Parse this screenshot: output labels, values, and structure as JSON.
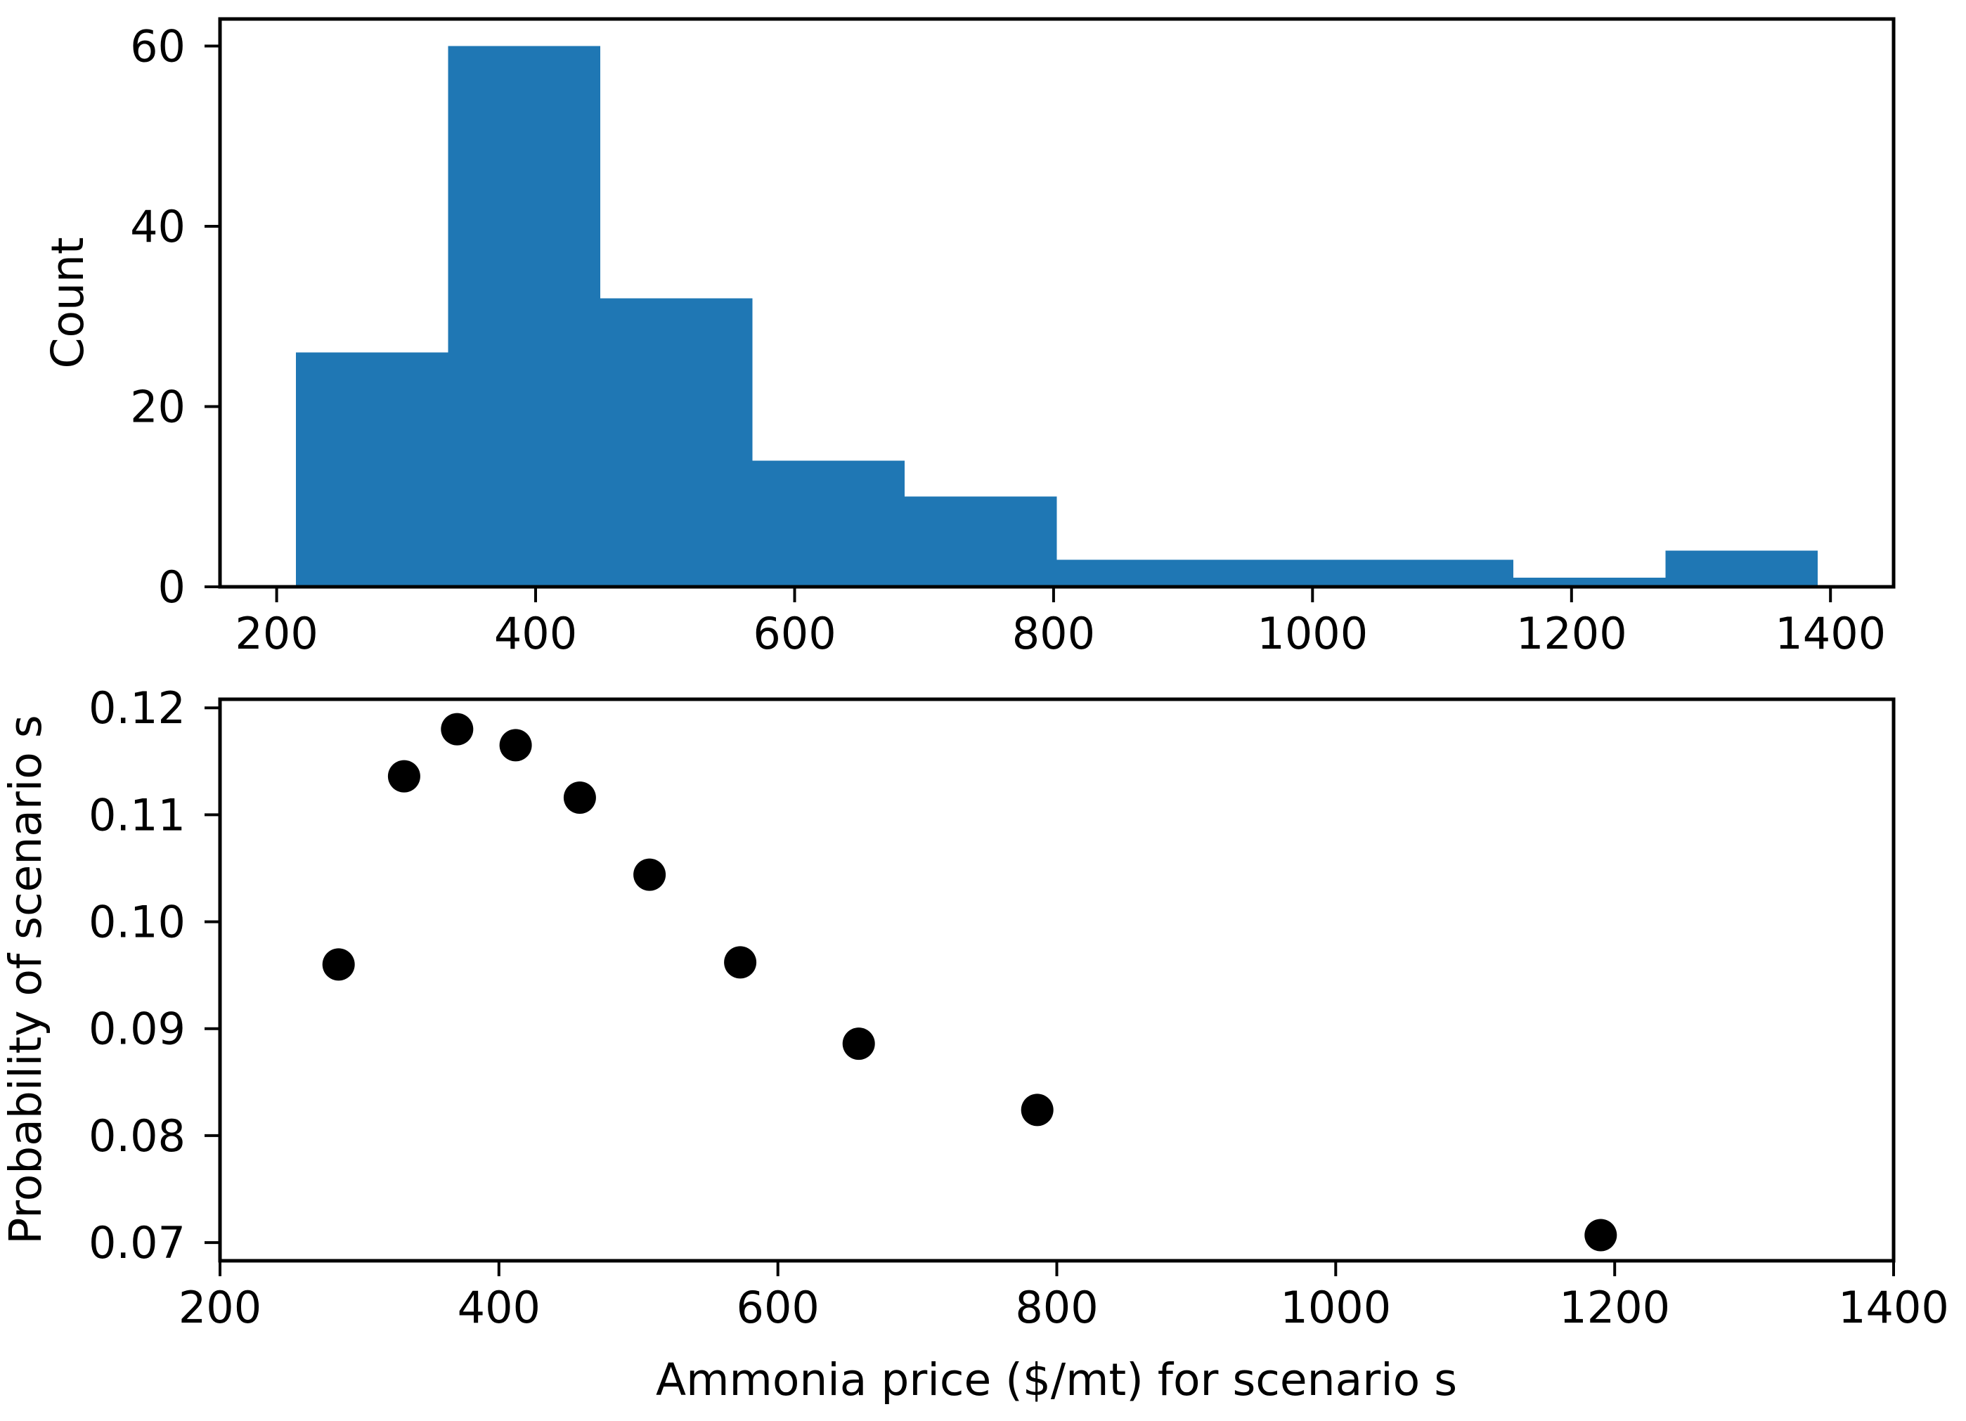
{
  "figure": {
    "background": "#ffffff",
    "axis_color": "#000000"
  },
  "chart_data": [
    {
      "type": "bar",
      "subtype": "histogram",
      "title": "",
      "xlabel": "",
      "ylabel": "Count",
      "bin_edges": [
        215,
        332.5,
        450,
        567.5,
        685,
        802.5,
        920,
        1037.5,
        1155,
        1272.5,
        1390
      ],
      "counts": [
        26,
        60,
        32,
        14,
        10,
        3,
        3,
        3,
        1,
        4
      ],
      "xticks": [
        200,
        400,
        600,
        800,
        1000,
        1200,
        1400
      ],
      "xticklabels": [
        "200",
        "400",
        "600",
        "800",
        "1000",
        "1200",
        "1400"
      ],
      "yticks": [
        0,
        20,
        40,
        60
      ],
      "yticklabels": [
        "0",
        "20",
        "40",
        "60"
      ],
      "xlim": [
        156.25,
        1448.75
      ],
      "ylim": [
        0,
        63
      ],
      "grid": "off",
      "legend": "none",
      "bar_color": "#1f77b4"
    },
    {
      "type": "scatter",
      "title": "",
      "xlabel": "Ammonia price ($/mt) for scenario s",
      "ylabel": "Probability of scenario s",
      "x": [
        285,
        332,
        370,
        412,
        458,
        508,
        573,
        658,
        786,
        1190
      ],
      "y": [
        0.096,
        0.1136,
        0.118,
        0.1165,
        0.1116,
        0.1044,
        0.0962,
        0.0886,
        0.0824,
        0.0707
      ],
      "xticks": [
        200,
        400,
        600,
        800,
        1000,
        1200,
        1400
      ],
      "xticklabels": [
        "200",
        "400",
        "600",
        "800",
        "1000",
        "1200",
        "1400"
      ],
      "yticks": [
        0.07,
        0.08,
        0.09,
        0.1,
        0.11,
        0.12
      ],
      "yticklabels": [
        "0.07",
        "0.08",
        "0.09",
        "0.10",
        "0.11",
        "0.12"
      ],
      "xlim": [
        200,
        1400
      ],
      "ylim": [
        0.0683,
        0.1208
      ],
      "grid": "off",
      "legend": "none",
      "marker_color": "#000000",
      "marker_radius_px": 23
    }
  ]
}
